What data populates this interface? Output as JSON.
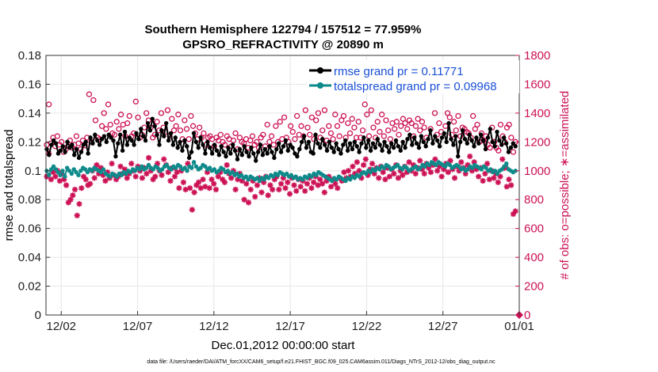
{
  "chart_data": {
    "type": "line",
    "title": "Southern Hemisphere 122794 / 157512 = 77.959%",
    "subtitle": "GPSRO_REFRACTIVITY @ 20890 m",
    "xlabel": "Dec.01,2012 00:00:00 start",
    "ylabel": "rmse and totalspread",
    "y2label": "# of obs: o=possible; ∗=assimilated",
    "footer": "data file: /Users/raeder/DAI/ATM_forcXX/CAM6_setup/f.e21.FHIST_BGC.f09_025.CAM6assim.011/Diags_NTrS_2012-12/obs_diag_output.nc",
    "x_tick_labels": [
      "12/02",
      "12/07",
      "12/12",
      "12/17",
      "12/22",
      "12/27",
      "01/01"
    ],
    "x_tick_values": [
      1,
      6,
      11,
      16,
      21,
      26,
      31
    ],
    "xlim": [
      0,
      31
    ],
    "ylim": [
      0,
      0.18
    ],
    "y_ticks": [
      "0",
      "0.02",
      "0.04",
      "0.06",
      "0.08",
      "0.1",
      "0.12",
      "0.14",
      "0.16",
      "0.18"
    ],
    "y2lim": [
      0,
      1800
    ],
    "y2_ticks": [
      "0",
      "200",
      "400",
      "600",
      "800",
      "1000",
      "1200",
      "1400",
      "1600",
      "1800"
    ],
    "legend_position": "top-right",
    "series": [
      {
        "name": "rmse grand pr = 0.11771",
        "color": "#000000",
        "marker": "filled-circle",
        "axis": "left",
        "values": [
          0.115,
          0.111,
          0.118,
          0.121,
          0.119,
          0.112,
          0.114,
          0.117,
          0.113,
          0.12,
          0.116,
          0.118,
          0.111,
          0.115,
          0.109,
          0.113,
          0.118,
          0.12,
          0.112,
          0.123,
          0.119,
          0.125,
          0.121,
          0.118,
          0.122,
          0.124,
          0.12,
          0.125,
          0.123,
          0.121,
          0.11,
          0.119,
          0.125,
          0.114,
          0.127,
          0.118,
          0.123,
          0.121,
          0.118,
          0.126,
          0.122,
          0.129,
          0.124,
          0.121,
          0.133,
          0.128,
          0.136,
          0.131,
          0.125,
          0.118,
          0.128,
          0.124,
          0.133,
          0.121,
          0.126,
          0.118,
          0.123,
          0.116,
          0.12,
          0.114,
          0.121,
          0.117,
          0.109,
          0.113,
          0.126,
          0.12,
          0.116,
          0.123,
          0.118,
          0.112,
          0.12,
          0.116,
          0.112,
          0.118,
          0.114,
          0.111,
          0.117,
          0.113,
          0.11,
          0.116,
          0.112,
          0.118,
          0.114,
          0.108,
          0.115,
          0.111,
          0.117,
          0.113,
          0.11,
          0.116,
          0.112,
          0.107,
          0.113,
          0.118,
          0.111,
          0.115,
          0.112,
          0.117,
          0.113,
          0.109,
          0.115,
          0.119,
          0.113,
          0.117,
          0.121,
          0.114,
          0.118,
          0.116,
          0.112,
          0.11,
          0.115,
          0.12,
          0.124,
          0.116,
          0.12,
          0.113,
          0.112,
          0.125,
          0.119,
          0.116,
          0.122,
          0.118,
          0.114,
          0.12,
          0.116,
          0.113,
          0.119,
          0.115,
          0.112,
          0.118,
          0.121,
          0.114,
          0.119,
          0.115,
          0.12,
          0.117,
          0.113,
          0.119,
          0.123,
          0.116,
          0.121,
          0.114,
          0.119,
          0.116,
          0.122,
          0.118,
          0.114,
          0.12,
          0.117,
          0.113,
          0.119,
          0.116,
          0.121,
          0.117,
          0.114,
          0.12,
          0.116,
          0.122,
          0.125,
          0.118,
          0.123,
          0.119,
          0.116,
          0.124,
          0.12,
          0.117,
          0.122,
          0.128,
          0.119,
          0.124,
          0.121,
          0.117,
          0.123,
          0.126,
          0.12,
          0.133,
          0.122,
          0.118,
          0.124,
          0.11,
          0.12,
          0.128,
          0.122,
          0.119,
          0.125,
          0.121,
          0.117,
          0.123,
          0.119,
          0.125,
          0.121,
          0.115,
          0.123,
          0.129,
          0.12,
          0.117,
          0.127,
          0.121,
          0.118,
          0.123,
          0.119,
          0.113,
          0.116,
          0.119,
          0.117
        ]
      },
      {
        "name": "totalspread grand pr = 0.09968",
        "color": "#0e8a8a",
        "marker": "filled-circle",
        "axis": "left",
        "values": [
          0.1,
          0.097,
          0.101,
          0.103,
          0.101,
          0.099,
          0.097,
          0.1,
          0.096,
          0.102,
          0.1,
          0.098,
          0.101,
          0.099,
          0.097,
          0.1,
          0.102,
          0.101,
          0.099,
          0.101,
          0.1,
          0.102,
          0.101,
          0.1,
          0.099,
          0.101,
          0.098,
          0.097,
          0.096,
          0.098,
          0.097,
          0.096,
          0.098,
          0.097,
          0.099,
          0.098,
          0.1,
          0.099,
          0.101,
          0.1,
          0.102,
          0.101,
          0.103,
          0.101,
          0.102,
          0.104,
          0.102,
          0.101,
          0.103,
          0.102,
          0.1,
          0.101,
          0.103,
          0.104,
          0.102,
          0.101,
          0.103,
          0.102,
          0.104,
          0.103,
          0.101,
          0.102,
          0.1,
          0.103,
          0.102,
          0.106,
          0.103,
          0.101,
          0.102,
          0.104,
          0.103,
          0.101,
          0.102,
          0.1,
          0.101,
          0.099,
          0.1,
          0.102,
          0.101,
          0.099,
          0.1,
          0.098,
          0.099,
          0.097,
          0.098,
          0.096,
          0.097,
          0.095,
          0.096,
          0.094,
          0.096,
          0.095,
          0.094,
          0.095,
          0.093,
          0.095,
          0.094,
          0.096,
          0.095,
          0.097,
          0.096,
          0.098,
          0.097,
          0.099,
          0.098,
          0.097,
          0.098,
          0.096,
          0.097,
          0.095,
          0.096,
          0.094,
          0.095,
          0.094,
          0.096,
          0.095,
          0.097,
          0.096,
          0.098,
          0.097,
          0.099,
          0.098,
          0.097,
          0.096,
          0.095,
          0.094,
          0.093,
          0.095,
          0.094,
          0.096,
          0.095,
          0.094,
          0.093,
          0.095,
          0.094,
          0.096,
          0.095,
          0.097,
          0.096,
          0.098,
          0.099,
          0.098,
          0.1,
          0.099,
          0.101,
          0.1,
          0.102,
          0.101,
          0.103,
          0.102,
          0.104,
          0.103,
          0.101,
          0.102,
          0.103,
          0.104,
          0.102,
          0.101,
          0.103,
          0.102,
          0.1,
          0.101,
          0.102,
          0.103,
          0.101,
          0.102,
          0.104,
          0.103,
          0.105,
          0.104,
          0.106,
          0.105,
          0.104,
          0.106,
          0.105,
          0.104,
          0.103,
          0.105,
          0.104,
          0.102,
          0.103,
          0.104,
          0.103,
          0.101,
          0.102,
          0.1,
          0.101,
          0.103,
          0.102,
          0.104,
          0.103,
          0.102,
          0.101,
          0.103,
          0.102,
          0.1,
          0.101,
          0.099,
          0.1,
          0.098,
          0.1,
          0.101,
          0.103,
          0.105,
          0.101,
          0.1,
          0.099,
          0.1
        ]
      },
      {
        "name": "possible observations",
        "color": "#cc1255",
        "marker": "open-circle",
        "axis": "right",
        "values": [
          1180,
          1460,
          1190,
          1230,
          1170,
          1240,
          1180,
          1200,
          1130,
          1150,
          1170,
          1210,
          1160,
          1180,
          1240,
          1190,
          1150,
          1210,
          1175,
          1230,
          1530,
          1200,
          1490,
          1350,
          1230,
          1220,
          1310,
          1400,
          1290,
          1460,
          1320,
          1260,
          1250,
          1340,
          1290,
          1390,
          1320,
          1240,
          1330,
          1380,
          1240,
          1260,
          1480,
          1370,
          1230,
          1250,
          1300,
          1400,
          1350,
          1300,
          1230,
          1250,
          1340,
          1280,
          1400,
          1300,
          1270,
          1420,
          1240,
          1360,
          1280,
          1310,
          1390,
          1280,
          1220,
          1350,
          1290,
          1220,
          1380,
          1310,
          1260,
          1220,
          1300,
          1230,
          1260,
          1180,
          1230,
          1240,
          1220,
          1170,
          1230,
          1210,
          1250,
          1200,
          1180,
          1240,
          1220,
          1170,
          1210,
          1260,
          1150,
          1230,
          1200,
          1190,
          1220,
          1160,
          1210,
          1240,
          1180,
          1200,
          1160,
          1230,
          1250,
          1170,
          1320,
          1200,
          1240,
          1180,
          1310,
          1200,
          1340,
          1220,
          1370,
          1230,
          1200,
          1310,
          1270,
          1220,
          1380,
          1250,
          1310,
          1240,
          1420,
          1300,
          1250,
          1370,
          1220,
          1350,
          1400,
          1230,
          1280,
          1420,
          1210,
          1310,
          1260,
          1220,
          1390,
          1310,
          1240,
          1350,
          1380,
          1230,
          1330,
          1260,
          1360,
          1300,
          1230,
          1340,
          1230,
          1280,
          1460,
          1390,
          1240,
          1420,
          1300,
          1230,
          1340,
          1270,
          1390,
          1240,
          1350,
          1280,
          1220,
          1330,
          1290,
          1340,
          1250,
          1310,
          1360,
          1330,
          1290,
          1350,
          1330,
          1240,
          1310,
          1360,
          1280,
          1340,
          1300,
          1230,
          1560,
          1290,
          1620,
          1400,
          1250,
          1330,
          1270,
          1570,
          1310,
          1400,
          1370,
          1250,
          1340,
          1280,
          1380,
          1240,
          1300,
          1290,
          1270,
          1260,
          1230,
          1380,
          1290,
          1320,
          1200,
          1260,
          1210,
          1240,
          1180,
          1160,
          1300,
          1200,
          1160,
          1140,
          1320,
          1240,
          1200,
          1300,
          1320,
          1230,
          1130,
          1200
        ]
      },
      {
        "name": "assimilated observations",
        "color": "#cc1255",
        "marker": "asterisk",
        "axis": "right",
        "values": [
          960,
          1120,
          940,
          990,
          960,
          1000,
          930,
          980,
          940,
          900,
          780,
          800,
          830,
          870,
          690,
          770,
          880,
          960,
          940,
          900,
          910,
          1000,
          950,
          1040,
          980,
          1020,
          970,
          930,
          990,
          950,
          1050,
          970,
          940,
          960,
          1030,
          980,
          1010,
          950,
          980,
          1050,
          1000,
          960,
          1030,
          1000,
          950,
          1020,
          980,
          1090,
          1000,
          940,
          960,
          1050,
          1000,
          970,
          1080,
          1040,
          990,
          930,
          1020,
          960,
          990,
          880,
          1000,
          920,
          870,
          1050,
          880,
          730,
          850,
          900,
          920,
          880,
          940,
          890,
          990,
          880,
          940,
          910,
          870,
          960,
          990,
          940,
          920,
          1040,
          980,
          950,
          1000,
          870,
          940,
          980,
          930,
          800,
          910,
          780,
          870,
          930,
          820,
          900,
          950,
          850,
          920,
          960,
          830,
          900,
          870,
          940,
          960,
          870,
          910,
          950,
          880,
          920,
          840,
          950,
          900,
          860,
          940,
          890,
          930,
          860,
          910,
          950,
          880,
          920,
          960,
          900,
          940,
          910,
          850,
          930,
          960,
          890,
          940,
          910,
          880,
          950,
          930,
          990,
          950,
          1000,
          960,
          1030,
          980,
          1060,
          1000,
          950,
          1040,
          1080,
          970,
          1010,
          1050,
          980,
          1020,
          950,
          1030,
          990,
          940,
          1020,
          960,
          1010,
          980,
          1040,
          950,
          1000,
          970,
          1030,
          990,
          1060,
          1000,
          1040,
          980,
          1020,
          1070,
          1010,
          980,
          1050,
          1020,
          990,
          1040,
          1080,
          1000,
          1030,
          960,
          1010,
          1050,
          990,
          1070,
          1010,
          950,
          1030,
          1000,
          1060,
          1020,
          980,
          1040,
          1100,
          1000,
          1060,
          1010,
          960,
          1020,
          930,
          980,
          1050,
          940,
          1000,
          950,
          980,
          920,
          960,
          1080,
          1020,
          890,
          940,
          900,
          700,
          720
        ]
      }
    ],
    "right_axis_extra_marker": {
      "x": 31,
      "y2": 0,
      "marker": "filled-diamond"
    }
  }
}
